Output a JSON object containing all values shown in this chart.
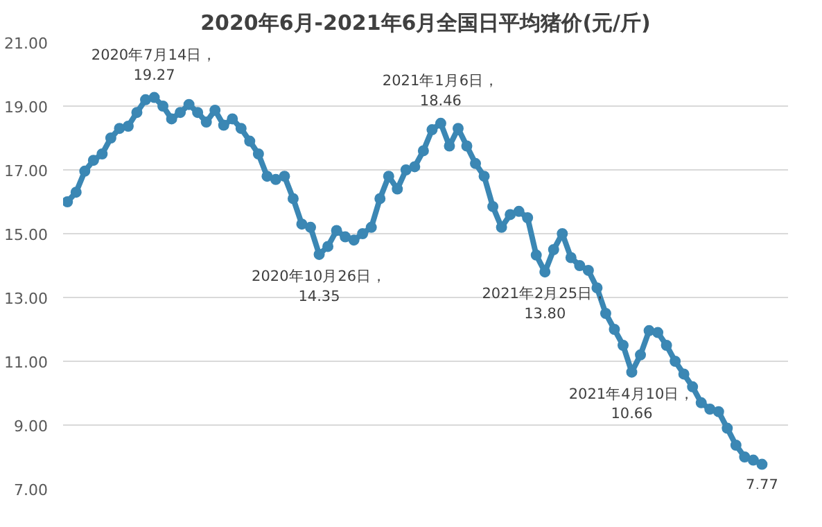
{
  "chart_data": {
    "type": "line",
    "title": "2020年6月-2021年6月全国日平均猪价(元/斤)",
    "categories": [
      null,
      null,
      null,
      null,
      null,
      null,
      null,
      null,
      null,
      null,
      null,
      null,
      null,
      null,
      null,
      null,
      null,
      null,
      null,
      null,
      null,
      null,
      null,
      null,
      null,
      null,
      null,
      null,
      null,
      null,
      null,
      null,
      null,
      null,
      null,
      null,
      null,
      null,
      null,
      null,
      null,
      null,
      null,
      null,
      null,
      null,
      null,
      null,
      null,
      null,
      null,
      null,
      null,
      null,
      null,
      null,
      null,
      null,
      null,
      null,
      null,
      null,
      null,
      null,
      null,
      null,
      null,
      null,
      null,
      null,
      null,
      null,
      null,
      null,
      null,
      null,
      null,
      null,
      null,
      null,
      null
    ],
    "series": [
      {
        "color": "#3b87b4",
        "values": [
          16.0,
          16.3,
          16.96,
          17.3,
          17.5,
          18.0,
          18.3,
          18.37,
          18.8,
          19.2,
          19.27,
          19.0,
          18.6,
          18.8,
          19.05,
          18.8,
          18.5,
          18.87,
          18.4,
          18.6,
          18.3,
          17.9,
          17.5,
          16.8,
          16.7,
          16.8,
          16.1,
          15.3,
          15.2,
          14.35,
          14.6,
          15.1,
          14.9,
          14.8,
          15.0,
          15.2,
          16.1,
          16.8,
          16.4,
          17.0,
          17.1,
          17.6,
          18.26,
          18.46,
          17.75,
          18.3,
          17.75,
          17.2,
          16.8,
          15.85,
          15.2,
          15.6,
          15.7,
          15.5,
          14.33,
          13.8,
          14.5,
          15.0,
          14.25,
          14.0,
          13.85,
          13.3,
          12.5,
          12.0,
          11.5,
          10.66,
          11.2,
          11.96,
          11.9,
          11.5,
          11.0,
          10.6,
          10.2,
          9.7,
          9.5,
          9.42,
          8.9,
          8.37,
          8.0,
          7.9,
          7.77
        ]
      }
    ],
    "ylim": [
      7,
      21
    ],
    "yticks": [
      {
        "value": 7,
        "label": "7.00"
      },
      {
        "value": 9,
        "label": "9.00"
      },
      {
        "value": 11,
        "label": "11.00"
      },
      {
        "value": 13,
        "label": "13.00"
      },
      {
        "value": 15,
        "label": "15.00"
      },
      {
        "value": 17,
        "label": "17.00"
      },
      {
        "value": 19,
        "label": "19.00"
      },
      {
        "value": 21,
        "label": "21.00"
      }
    ],
    "grid": "y",
    "marker": "circle",
    "line_style": "solid",
    "annotations": [
      {
        "text": "2020年7月14日，\n19.27",
        "y": 19.27
      },
      {
        "text": "2020年10月26日，\n14.35",
        "y": 14.35
      },
      {
        "text": "2021年1月6日，\n18.46",
        "y": 18.46
      },
      {
        "text": "2021年2月25日，\n13.80",
        "y": 13.8
      },
      {
        "text": "2021年4月10日，\n10.66",
        "y": 10.66
      },
      {
        "text": "7.77",
        "y": 7.77
      }
    ]
  }
}
